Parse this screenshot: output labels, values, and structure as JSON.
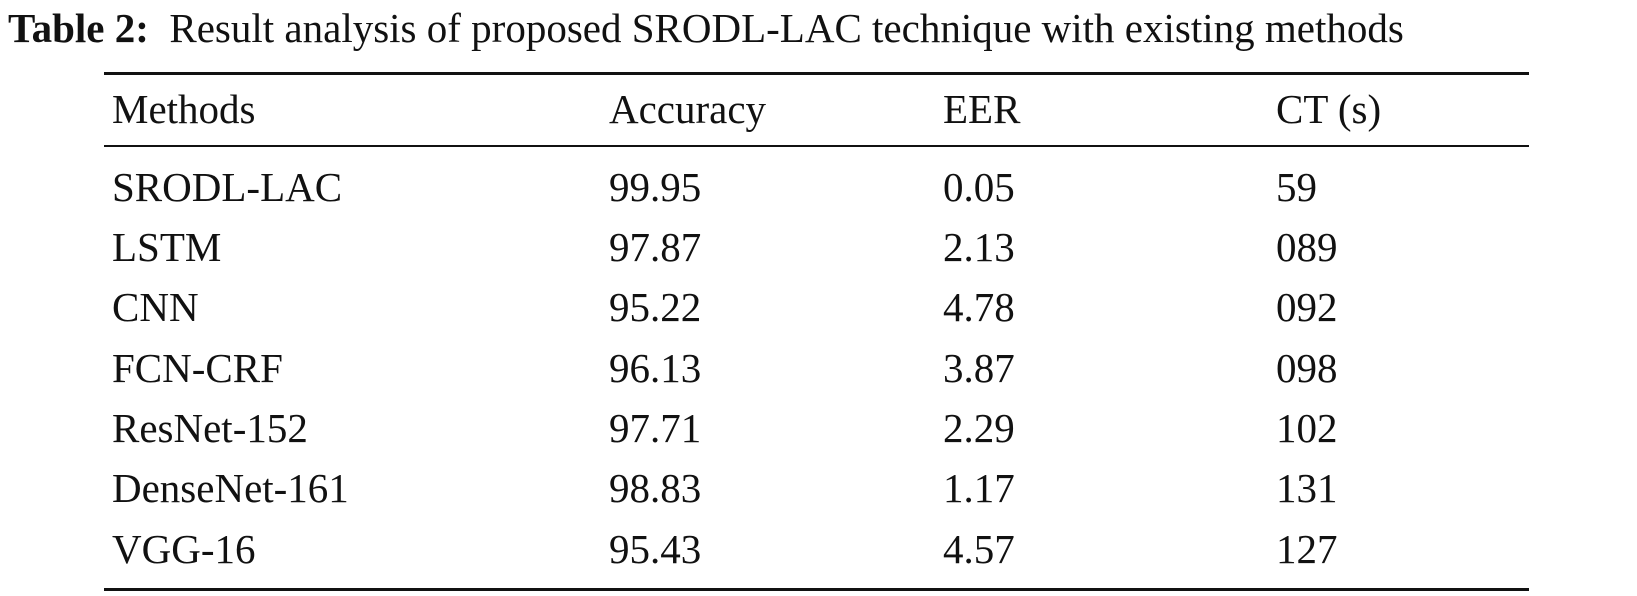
{
  "caption": {
    "label": "Table 2:",
    "text": "Result analysis of proposed SRODL-LAC technique with existing methods"
  },
  "table": {
    "headers": [
      "Methods",
      "Accuracy",
      "EER",
      "CT (s)"
    ],
    "rows": [
      [
        "SRODL-LAC",
        "99.95",
        "0.05",
        "59"
      ],
      [
        "LSTM",
        "97.87",
        "2.13",
        "089"
      ],
      [
        "CNN",
        "95.22",
        "4.78",
        "092"
      ],
      [
        "FCN-CRF",
        "96.13",
        "3.87",
        "098"
      ],
      [
        "ResNet-152",
        "97.71",
        "2.29",
        "102"
      ],
      [
        "DenseNet-161",
        "98.83",
        "1.17",
        "131"
      ],
      [
        "VGG-16",
        "95.43",
        "4.57",
        "127"
      ]
    ]
  }
}
